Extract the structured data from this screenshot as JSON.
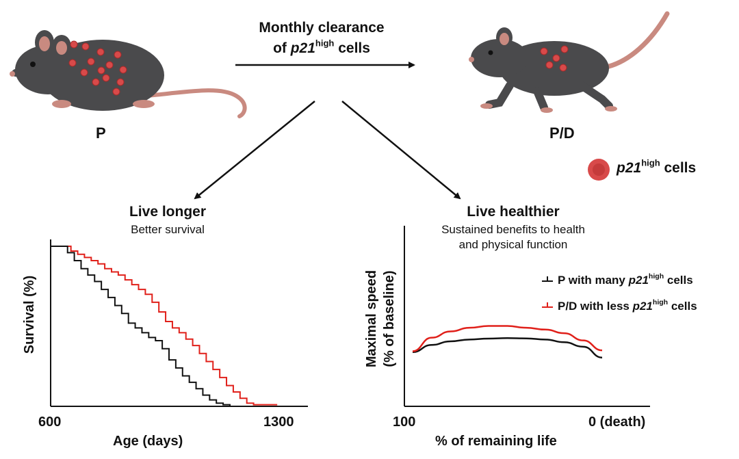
{
  "header": {
    "line1": "Monthly clearance",
    "line2_prefix": "of ",
    "gene": "p21",
    "sup": "high",
    "line2_suffix": " cells"
  },
  "mice": {
    "left_label": "P",
    "right_label": "P/D"
  },
  "cells_legend": {
    "gene": "p21",
    "sup": "high",
    "suffix": " cells"
  },
  "left_section": {
    "title": "Live longer",
    "subtitle": "Better survival"
  },
  "right_section": {
    "title": "Live healthier",
    "subtitle_line1": "Sustained benefits to health",
    "subtitle_line2": "and physical function"
  },
  "colors": {
    "p_series": "#111111",
    "pd_series": "#e0201a",
    "cell_fill": "#d84a4a",
    "mouse_body": "#4a4a4c",
    "mouse_pink": "#c98a80"
  },
  "chart_data": [
    {
      "type": "line",
      "subtype": "kaplan-meier",
      "xlabel": "Age (days)",
      "ylabel": "Survival (%)",
      "x_ticks": [
        "600",
        "1300"
      ],
      "xlim": [
        600,
        1300
      ],
      "ylim": [
        0,
        100
      ],
      "series": [
        {
          "key": "p",
          "color": "#111111",
          "points": [
            [
              600,
              100
            ],
            [
              630,
              100
            ],
            [
              650,
              96
            ],
            [
              670,
              91
            ],
            [
              690,
              86
            ],
            [
              710,
              82
            ],
            [
              730,
              78
            ],
            [
              750,
              73
            ],
            [
              770,
              68
            ],
            [
              790,
              63
            ],
            [
              810,
              58
            ],
            [
              830,
              52
            ],
            [
              850,
              49
            ],
            [
              870,
              46
            ],
            [
              890,
              43
            ],
            [
              910,
              41
            ],
            [
              930,
              36
            ],
            [
              950,
              29
            ],
            [
              970,
              24
            ],
            [
              990,
              19
            ],
            [
              1010,
              15
            ],
            [
              1030,
              11
            ],
            [
              1050,
              7
            ],
            [
              1070,
              4
            ],
            [
              1090,
              2
            ],
            [
              1110,
              1
            ],
            [
              1130,
              0
            ],
            [
              1270,
              0
            ]
          ]
        },
        {
          "key": "pd",
          "color": "#e0201a",
          "points": [
            [
              600,
              100
            ],
            [
              640,
              100
            ],
            [
              660,
              97
            ],
            [
              680,
              95
            ],
            [
              700,
              93
            ],
            [
              720,
              91
            ],
            [
              740,
              89
            ],
            [
              760,
              86
            ],
            [
              780,
              84
            ],
            [
              800,
              82
            ],
            [
              820,
              79
            ],
            [
              840,
              76
            ],
            [
              860,
              73
            ],
            [
              880,
              70
            ],
            [
              900,
              65
            ],
            [
              920,
              59
            ],
            [
              940,
              53
            ],
            [
              960,
              49
            ],
            [
              980,
              46
            ],
            [
              1000,
              42
            ],
            [
              1020,
              38
            ],
            [
              1040,
              33
            ],
            [
              1060,
              28
            ],
            [
              1080,
              23
            ],
            [
              1100,
              18
            ],
            [
              1120,
              13
            ],
            [
              1140,
              9
            ],
            [
              1160,
              5
            ],
            [
              1180,
              2
            ],
            [
              1200,
              1
            ],
            [
              1270,
              1
            ]
          ]
        }
      ]
    },
    {
      "type": "line",
      "xlabel": "% of remaining life",
      "ylabel_line1": "Maximal speed",
      "ylabel_line2": "(% of baseline)",
      "x_ticks": [
        "100",
        "0 (death)"
      ],
      "xlim": [
        100,
        0
      ],
      "ylim": [
        0,
        100
      ],
      "legend": {
        "p_prefix": "P with many ",
        "p_gene": "p21",
        "p_sup": "high",
        "p_suffix": " cells",
        "pd_prefix": "P/D with less ",
        "pd_gene": "p21",
        "pd_sup": "high",
        "pd_suffix": " cells"
      },
      "series": [
        {
          "key": "p",
          "color": "#111111",
          "points": [
            [
              100,
              30
            ],
            [
              90,
              34
            ],
            [
              80,
              36
            ],
            [
              70,
              37
            ],
            [
              60,
              37.5
            ],
            [
              50,
              37.8
            ],
            [
              40,
              37.6
            ],
            [
              30,
              37
            ],
            [
              20,
              35.5
            ],
            [
              10,
              33
            ],
            [
              0,
              27
            ]
          ]
        },
        {
          "key": "pd",
          "color": "#e0201a",
          "points": [
            [
              100,
              30.5
            ],
            [
              90,
              38
            ],
            [
              80,
              41.5
            ],
            [
              70,
              43.5
            ],
            [
              60,
              44.5
            ],
            [
              50,
              44.5
            ],
            [
              40,
              43.5
            ],
            [
              30,
              42.5
            ],
            [
              20,
              40.5
            ],
            [
              10,
              36.5
            ],
            [
              0,
              31
            ]
          ]
        }
      ]
    }
  ]
}
